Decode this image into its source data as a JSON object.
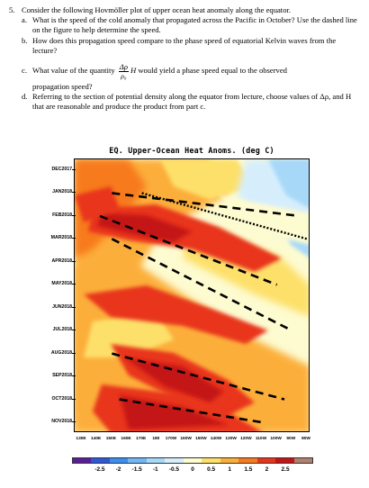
{
  "question": {
    "number": "5.",
    "intro": "Consider the following Hovmöller plot of upper ocean heat anomaly along the equator.",
    "a_label": "a.",
    "a_text": "What is the speed of the cold anomaly that propagated across the Pacific in October? Use the dashed line on the figure to help determine the speed.",
    "b_label": "b.",
    "b_text": "How does this propagation speed compare to the phase speed of equatorial Kelvin waves from the lecture?",
    "c_label": "c.",
    "c_text_before": "What value of the quantity",
    "c_frac_num": "Δρ",
    "c_frac_den": "ρ₀",
    "c_var": "H",
    "c_text_after": "would yield a phase speed equal to the observed",
    "c_text_cont": "propagation speed?",
    "d_label": "d.",
    "d_text": "Referring to the section of potential density along the equator from lecture, choose values of Δρ, and H that are reasonable and produce the product from part c."
  },
  "chart_data": {
    "type": "heatmap",
    "title": "EQ. Upper-Ocean Heat Anoms. (deg C)",
    "y_ticks": [
      "DEC2017",
      "JAN2018",
      "FEB2018",
      "MAR2018",
      "APR2018",
      "MAY2018",
      "JUN2018",
      "JUL2018",
      "AUG2018",
      "SEP2018",
      "OCT2018",
      "NOV2018"
    ],
    "x_ticks": [
      "130E",
      "140E",
      "150E",
      "160E",
      "170E",
      "180",
      "170W",
      "160W",
      "150W",
      "140W",
      "130W",
      "120W",
      "110W",
      "100W",
      "90W",
      "80W"
    ],
    "colorbar_labels": [
      "-2.5",
      "-2",
      "-1.5",
      "-1",
      "-0.5",
      "0",
      "0.5",
      "1",
      "1.5",
      "2",
      "2.5"
    ],
    "colorbar_colors": [
      "#5a1e96",
      "#2f57d6",
      "#3c8df0",
      "#72b6f5",
      "#a8d8f8",
      "#d6eefc",
      "#fdfbd0",
      "#fde06a",
      "#fcae3a",
      "#f77a1e",
      "#e8341c",
      "#c41414",
      "#b08070"
    ],
    "dashed_lines": [
      {
        "x_start": "150E",
        "t_start": "JAN2018",
        "x_end": "85W",
        "t_end": "FEB2018"
      },
      {
        "x_start": "142E",
        "t_start": "FEB2018",
        "x_end": "100W",
        "t_end": "MAY2018"
      },
      {
        "x_start": "150E",
        "t_start": "MAR2018",
        "x_end": "90W",
        "t_end": "JUL2018"
      },
      {
        "x_start": "150E",
        "t_start": "AUG2018",
        "x_end": "95W",
        "t_end": "OCT2018"
      },
      {
        "x_start": "155E",
        "t_start": "OCT2018",
        "x_end": "110W",
        "t_end": "NOV2018"
      }
    ],
    "dotted_line": {
      "x_start": "170E",
      "t_start": "JAN2018",
      "x_end": "80W",
      "t_end": "MAR2018"
    }
  }
}
